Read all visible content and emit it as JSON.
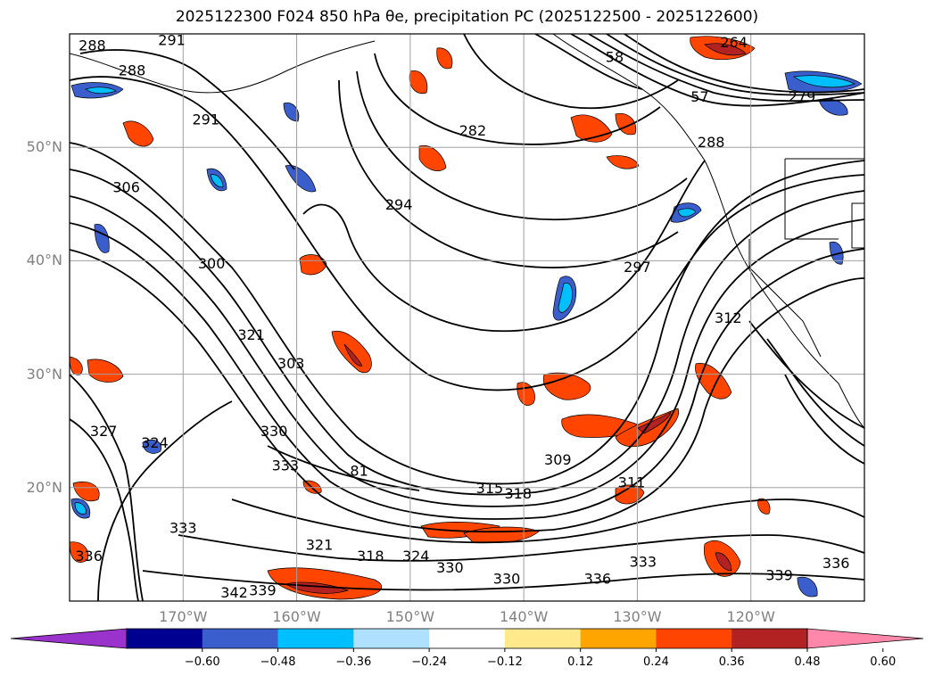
{
  "title": "2025122300 F024 850 hPa θe, precipitation PC (2025122500 - 2025122600)",
  "map": {
    "lon_range": [
      -180,
      -110
    ],
    "lat_range": [
      10,
      60
    ],
    "lat_ticks": [
      {
        "value": 50,
        "label": "50°N"
      },
      {
        "value": 40,
        "label": "40°N"
      },
      {
        "value": 30,
        "label": "30°N"
      },
      {
        "value": 20,
        "label": "20°N"
      }
    ],
    "lon_ticks": [
      {
        "value": -170,
        "label": "170°W"
      },
      {
        "value": -160,
        "label": "160°W"
      },
      {
        "value": -150,
        "label": "150°W"
      },
      {
        "value": -140,
        "label": "140°W"
      },
      {
        "value": -130,
        "label": "130°W"
      },
      {
        "value": -120,
        "label": "120°W"
      }
    ],
    "gridlines": true,
    "contour_labels": [
      {
        "text": "288",
        "lon": -178,
        "lat": 59
      },
      {
        "text": "291",
        "lon": -171,
        "lat": 59.5
      },
      {
        "text": "288",
        "lon": -174.5,
        "lat": 56.8
      },
      {
        "text": "291",
        "lon": -168,
        "lat": 52.5
      },
      {
        "text": "306",
        "lon": -175,
        "lat": 46.5
      },
      {
        "text": "300",
        "lon": -167.5,
        "lat": 39.8
      },
      {
        "text": "321",
        "lon": -164,
        "lat": 33.5
      },
      {
        "text": "303",
        "lon": -160.5,
        "lat": 31
      },
      {
        "text": "327",
        "lon": -177,
        "lat": 25
      },
      {
        "text": "324",
        "lon": -172.5,
        "lat": 24
      },
      {
        "text": "330",
        "lon": -162,
        "lat": 25
      },
      {
        "text": "333",
        "lon": -161,
        "lat": 22
      },
      {
        "text": "81",
        "lon": -154.5,
        "lat": 21.5
      },
      {
        "text": "309",
        "lon": -137,
        "lat": 22.5
      },
      {
        "text": "315",
        "lon": -143,
        "lat": 20
      },
      {
        "text": "318",
        "lon": -140.5,
        "lat": 19.5
      },
      {
        "text": "311",
        "lon": -130.5,
        "lat": 20.5
      },
      {
        "text": "333",
        "lon": -170,
        "lat": 16.5
      },
      {
        "text": "336",
        "lon": -178.3,
        "lat": 14
      },
      {
        "text": "321",
        "lon": -158,
        "lat": 15
      },
      {
        "text": "318",
        "lon": -153.5,
        "lat": 14
      },
      {
        "text": "324",
        "lon": -149.5,
        "lat": 14
      },
      {
        "text": "330",
        "lon": -146.5,
        "lat": 13
      },
      {
        "text": "330",
        "lon": -141.5,
        "lat": 12
      },
      {
        "text": "336",
        "lon": -133.5,
        "lat": 12
      },
      {
        "text": "333",
        "lon": -129.5,
        "lat": 13.5
      },
      {
        "text": "339",
        "lon": -163,
        "lat": 11
      },
      {
        "text": "342",
        "lon": -165.5,
        "lat": 10.8
      },
      {
        "text": "339",
        "lon": -117.5,
        "lat": 12.3
      },
      {
        "text": "336",
        "lon": -112.5,
        "lat": 13.4
      },
      {
        "text": "282",
        "lon": -144.5,
        "lat": 51.5
      },
      {
        "text": "294",
        "lon": -151,
        "lat": 45
      },
      {
        "text": "297",
        "lon": -130,
        "lat": 39.5
      },
      {
        "text": "312",
        "lon": -122,
        "lat": 35
      },
      {
        "text": "264",
        "lon": -121.5,
        "lat": 59.3
      },
      {
        "text": "279",
        "lon": -115.5,
        "lat": 54.5
      },
      {
        "text": "288",
        "lon": -123.5,
        "lat": 50.5
      },
      {
        "text": "58",
        "lon": -132,
        "lat": 58
      },
      {
        "text": "57",
        "lon": -124.5,
        "lat": 54.5
      }
    ]
  },
  "colorbar": {
    "colors": [
      "#9933cc",
      "#000090",
      "#3a5fcd",
      "#00bfff",
      "#b0e0ff",
      "#ffffff",
      "#ffe98a",
      "#ffa500",
      "#ff4500",
      "#b22222",
      "#ff88aa"
    ],
    "labels": [
      "−0.60",
      "−0.48",
      "−0.36",
      "−0.24",
      "−0.12",
      "0.12",
      "0.24",
      "0.36",
      "0.48",
      "0.60"
    ]
  }
}
